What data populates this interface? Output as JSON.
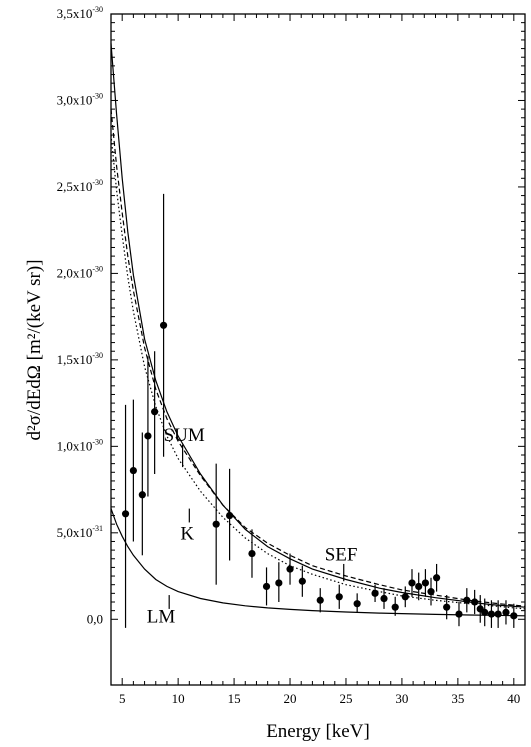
{
  "chart_data": {
    "type": "scatter",
    "title": "",
    "xlabel": "Energy [keV]",
    "ylabel": "d²σ/dEdΩ [m²/(keV sr)]",
    "xlim": [
      4.0,
      41.0
    ],
    "ylim": [
      -0.38,
      3.5
    ],
    "y_scale_note": "x10^-30",
    "x_ticks": [
      5,
      10,
      15,
      20,
      25,
      30,
      35,
      40
    ],
    "y_ticks": [
      {
        "value": 0.0,
        "label": "0,0"
      },
      {
        "value": 0.5,
        "label": "5,0x10",
        "exp": "-31"
      },
      {
        "value": 1.0,
        "label": "1,0x10",
        "exp": "-30"
      },
      {
        "value": 1.5,
        "label": "1,5x10",
        "exp": "-30"
      },
      {
        "value": 2.0,
        "label": "2,0x10",
        "exp": "-30"
      },
      {
        "value": 2.5,
        "label": "2,5x10",
        "exp": "-30"
      },
      {
        "value": 3.0,
        "label": "3,0x10",
        "exp": "-30"
      },
      {
        "value": 3.5,
        "label": "3,5x10",
        "exp": "-30"
      }
    ],
    "grid": false,
    "legend": "none",
    "points": [
      {
        "x": 5.3,
        "y": 0.61,
        "lo": -0.05,
        "hi": 1.24
      },
      {
        "x": 6.0,
        "y": 0.86,
        "lo": 0.45,
        "hi": 1.27
      },
      {
        "x": 6.8,
        "y": 0.72,
        "lo": 0.37,
        "hi": 1.08
      },
      {
        "x": 7.3,
        "y": 1.06,
        "lo": 0.71,
        "hi": 1.52
      },
      {
        "x": 7.9,
        "y": 1.2,
        "lo": 0.84,
        "hi": 1.55
      },
      {
        "x": 8.7,
        "y": 1.7,
        "lo": 0.94,
        "hi": 2.46
      },
      {
        "x": 13.4,
        "y": 0.55,
        "lo": 0.2,
        "hi": 0.9
      },
      {
        "x": 14.6,
        "y": 0.6,
        "lo": 0.34,
        "hi": 0.87
      },
      {
        "x": 16.6,
        "y": 0.38,
        "lo": 0.24,
        "hi": 0.52
      },
      {
        "x": 17.9,
        "y": 0.19,
        "lo": 0.08,
        "hi": 0.3
      },
      {
        "x": 19.0,
        "y": 0.21,
        "lo": 0.1,
        "hi": 0.33
      },
      {
        "x": 20.0,
        "y": 0.29,
        "lo": 0.2,
        "hi": 0.38
      },
      {
        "x": 21.1,
        "y": 0.22,
        "lo": 0.13,
        "hi": 0.31
      },
      {
        "x": 22.7,
        "y": 0.11,
        "lo": 0.04,
        "hi": 0.18
      },
      {
        "x": 24.4,
        "y": 0.13,
        "lo": 0.06,
        "hi": 0.2
      },
      {
        "x": 26.0,
        "y": 0.09,
        "lo": 0.04,
        "hi": 0.15
      },
      {
        "x": 27.6,
        "y": 0.15,
        "lo": 0.1,
        "hi": 0.2
      },
      {
        "x": 28.4,
        "y": 0.12,
        "lo": 0.06,
        "hi": 0.18
      },
      {
        "x": 29.4,
        "y": 0.07,
        "lo": 0.02,
        "hi": 0.13
      },
      {
        "x": 30.3,
        "y": 0.13,
        "lo": 0.07,
        "hi": 0.19
      },
      {
        "x": 30.9,
        "y": 0.21,
        "lo": 0.13,
        "hi": 0.29
      },
      {
        "x": 31.5,
        "y": 0.19,
        "lo": 0.11,
        "hi": 0.27
      },
      {
        "x": 32.1,
        "y": 0.21,
        "lo": 0.13,
        "hi": 0.29
      },
      {
        "x": 32.6,
        "y": 0.16,
        "lo": 0.08,
        "hi": 0.24
      },
      {
        "x": 33.1,
        "y": 0.24,
        "lo": 0.16,
        "hi": 0.32
      },
      {
        "x": 34.0,
        "y": 0.07,
        "lo": 0.0,
        "hi": 0.14
      },
      {
        "x": 35.1,
        "y": 0.03,
        "lo": -0.04,
        "hi": 0.1
      },
      {
        "x": 35.8,
        "y": 0.11,
        "lo": 0.04,
        "hi": 0.18
      },
      {
        "x": 36.5,
        "y": 0.1,
        "lo": 0.03,
        "hi": 0.17
      },
      {
        "x": 37.0,
        "y": 0.06,
        "lo": -0.02,
        "hi": 0.14
      },
      {
        "x": 37.4,
        "y": 0.04,
        "lo": -0.04,
        "hi": 0.12
      },
      {
        "x": 38.0,
        "y": 0.03,
        "lo": -0.05,
        "hi": 0.11
      },
      {
        "x": 38.6,
        "y": 0.03,
        "lo": -0.05,
        "hi": 0.11
      },
      {
        "x": 39.3,
        "y": 0.04,
        "lo": -0.03,
        "hi": 0.11
      },
      {
        "x": 40.0,
        "y": 0.02,
        "lo": -0.05,
        "hi": 0.09
      }
    ],
    "curves": [
      {
        "name": "SUM",
        "style": "solid",
        "x": [
          4.0,
          4.5,
          5,
          5.5,
          6,
          7,
          8,
          9,
          10,
          12,
          14,
          16,
          18,
          20,
          22,
          25,
          28,
          30,
          33,
          36,
          38,
          41
        ],
        "y": [
          3.33,
          2.92,
          2.55,
          2.24,
          1.99,
          1.62,
          1.38,
          1.2,
          1.06,
          0.84,
          0.66,
          0.52,
          0.42,
          0.35,
          0.29,
          0.23,
          0.18,
          0.155,
          0.125,
          0.1,
          0.085,
          0.07
        ]
      },
      {
        "name": "SEF",
        "style": "dashed",
        "x": [
          4.0,
          4.5,
          5,
          5.5,
          6,
          7,
          8,
          9,
          10,
          12,
          14,
          16,
          18,
          20,
          22,
          25,
          28,
          30,
          33,
          36,
          38,
          41
        ],
        "y": [
          2.95,
          2.62,
          2.35,
          2.1,
          1.9,
          1.57,
          1.33,
          1.16,
          1.03,
          0.83,
          0.66,
          0.53,
          0.44,
          0.37,
          0.31,
          0.25,
          0.2,
          0.17,
          0.14,
          0.11,
          0.095,
          0.075
        ]
      },
      {
        "name": "K",
        "style": "dotted",
        "x": [
          4.0,
          4.5,
          5,
          5.5,
          6,
          7,
          8,
          9,
          10,
          12,
          14,
          16,
          18,
          20,
          22,
          25,
          28,
          30,
          33,
          36,
          38,
          41
        ],
        "y": [
          2.8,
          2.48,
          2.22,
          1.98,
          1.78,
          1.46,
          1.23,
          1.06,
          0.93,
          0.74,
          0.59,
          0.47,
          0.38,
          0.31,
          0.26,
          0.2,
          0.16,
          0.135,
          0.11,
          0.09,
          0.078,
          0.06
        ]
      },
      {
        "name": "LM",
        "style": "solid",
        "x": [
          4.0,
          4.5,
          5,
          5.5,
          6,
          7,
          8,
          9,
          10,
          12,
          14,
          16,
          18,
          20,
          22,
          25,
          28,
          30,
          33,
          36,
          38,
          41
        ],
        "y": [
          0.64,
          0.55,
          0.48,
          0.42,
          0.37,
          0.29,
          0.23,
          0.19,
          0.16,
          0.12,
          0.095,
          0.078,
          0.066,
          0.057,
          0.05,
          0.042,
          0.036,
          0.033,
          0.028,
          0.025,
          0.023,
          0.02
        ]
      }
    ],
    "annotations": [
      {
        "text": "SUM",
        "x": 8.7,
        "y": 1.03,
        "lx1": 10.4,
        "ly1": 1.01,
        "lx2": 10.4,
        "ly2": 0.88
      },
      {
        "text": "K",
        "x": 10.2,
        "y": 0.46,
        "lx1": 11.0,
        "ly1": 0.56,
        "lx2": 11.0,
        "ly2": 0.64
      },
      {
        "text": "SEF",
        "x": 23.1,
        "y": 0.34,
        "lx1": 24.8,
        "ly1": 0.32,
        "lx2": 24.8,
        "ly2": 0.22
      },
      {
        "text": "LM",
        "x": 7.2,
        "y": -0.02,
        "lx1": 9.2,
        "ly1": 0.06,
        "lx2": 9.2,
        "ly2": 0.14
      }
    ]
  }
}
